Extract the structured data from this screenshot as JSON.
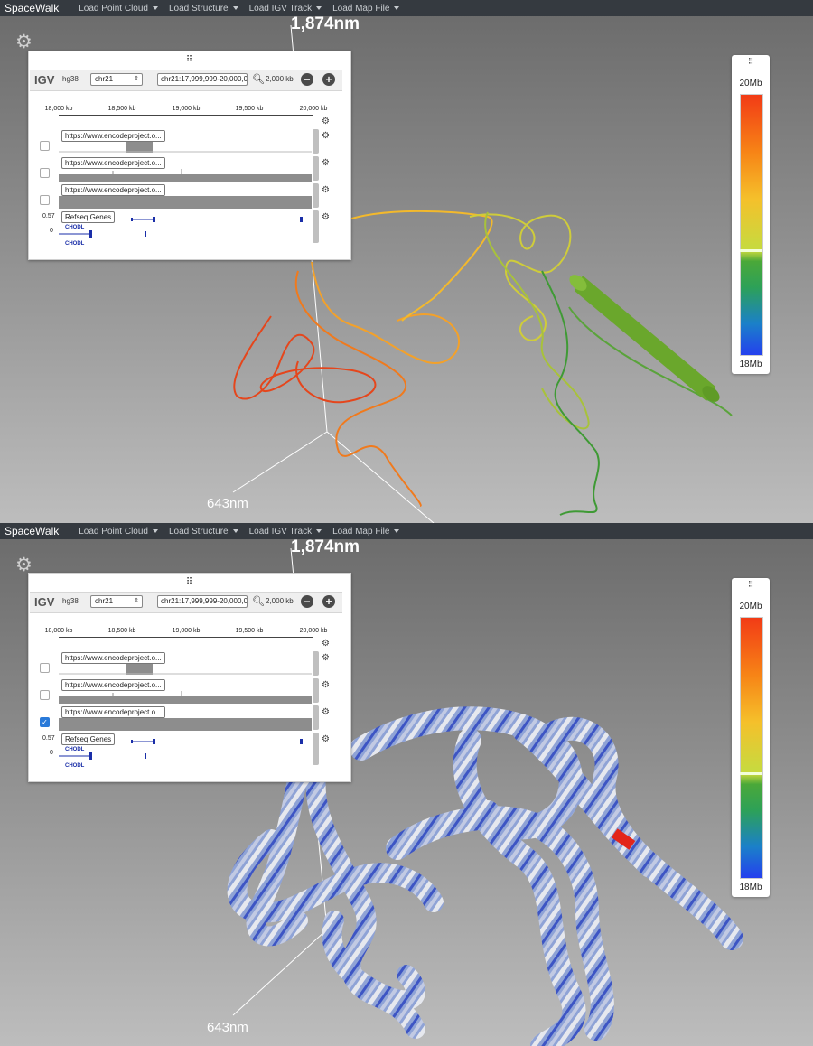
{
  "navbar": {
    "brand": "SpaceWalk",
    "menus": [
      "Load Point Cloud",
      "Load Structure",
      "Load IGV Track",
      "Load Map File"
    ]
  },
  "scene": {
    "label_top": "1,874nm",
    "label_bottom": "643nm"
  },
  "igv": {
    "logo": "IGV",
    "genome": "hg38",
    "chromosome": "chr21",
    "locus": "chr21:17,999,999-20,000,000",
    "window_size": "2,000 kb",
    "ruler_ticks": [
      "18,000 kb",
      "18,500 kb",
      "19,000 kb",
      "19,500 kb",
      "20,000 kb"
    ],
    "tracks": [
      {
        "name": "https://www.encodeproject.o..."
      },
      {
        "name": "https://www.encodeproject.o..."
      },
      {
        "name": "https://www.encodeproject.o..."
      }
    ],
    "gene_track": {
      "name": "Refseq Genes",
      "gene": "CHODL",
      "scale_max": "0.57",
      "scale_min": "0"
    }
  },
  "panels": [
    {
      "id": "top",
      "third_track_checked": false
    },
    {
      "id": "bottom",
      "third_track_checked": true
    }
  ],
  "colorbar": {
    "top_label": "20Mb",
    "bottom_label": "18Mb",
    "colors": [
      "#f23b16",
      "#f78416",
      "#f5c02b",
      "#c9d93e",
      "#4aa839",
      "#1b80c9",
      "#2440ee"
    ]
  }
}
